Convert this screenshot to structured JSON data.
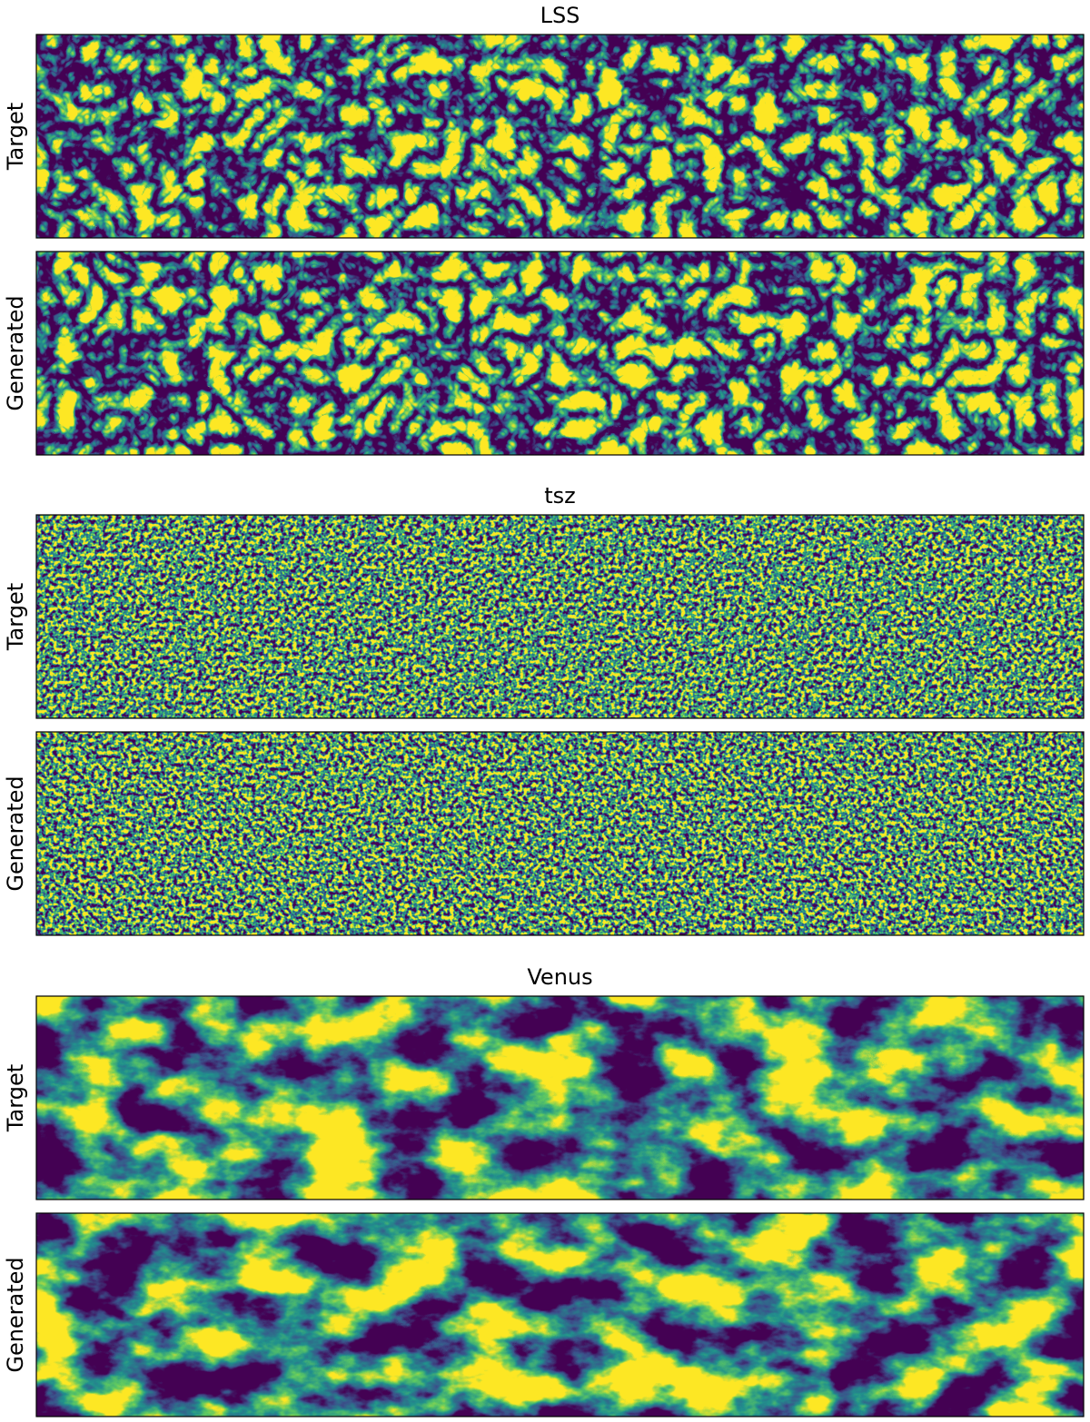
{
  "panels": [
    {
      "title": "LSS",
      "rows": [
        {
          "label": "Target"
        },
        {
          "label": "Generated"
        }
      ]
    },
    {
      "title": "tsz",
      "rows": [
        {
          "label": "Target"
        },
        {
          "label": "Generated"
        }
      ]
    },
    {
      "title": "Venus",
      "rows": [
        {
          "label": "Target"
        },
        {
          "label": "Generated"
        }
      ]
    }
  ]
}
